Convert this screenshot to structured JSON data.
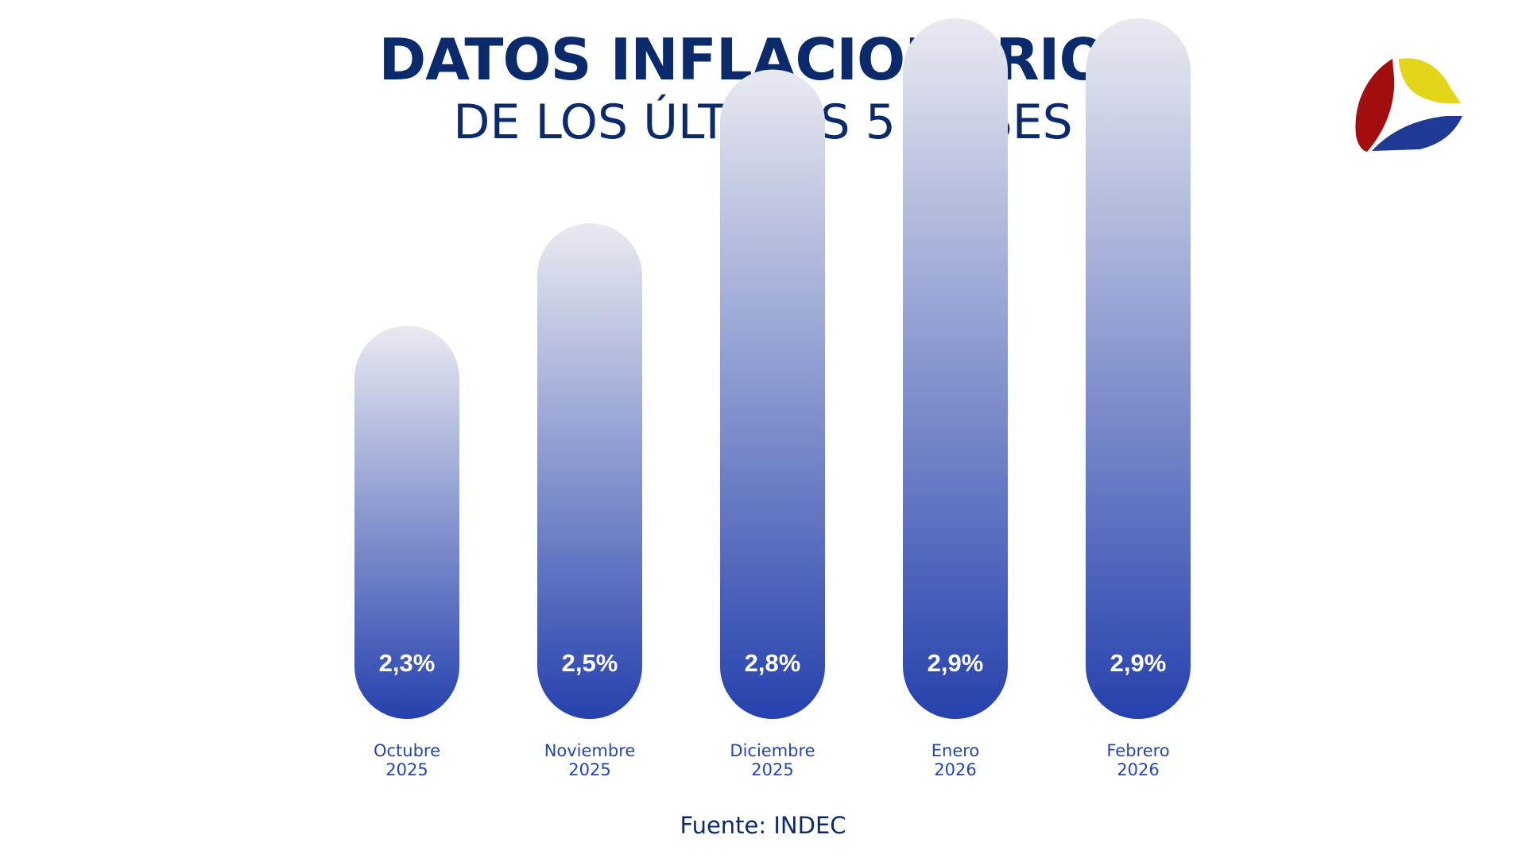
{
  "header": {
    "title": "DATOS INFLACIONARIOS",
    "subtitle": "DE LOS ÚLTIMOS 5 MESES"
  },
  "footer": {
    "source": "Fuente: INDEC"
  },
  "logo": {
    "icon": "tricolor-petal-logo-icon",
    "colors": [
      "#a30d0d",
      "#e3d61a",
      "#1f3a93"
    ]
  },
  "colors": {
    "title": "#0b2a6b",
    "bar_top": "#e9eaf0",
    "bar_bottom": "#2541ad",
    "value_text": "#ffffff",
    "category_text": "#2545b0"
  },
  "chart_data": {
    "type": "bar",
    "categories": [
      [
        "Octubre",
        "2025"
      ],
      [
        "Noviembre",
        "2025"
      ],
      [
        "Diciembre",
        "2025"
      ],
      [
        "Enero",
        "2026"
      ],
      [
        "Febrero",
        "2026"
      ]
    ],
    "values": [
      2.3,
      2.5,
      2.8,
      2.9,
      2.9
    ],
    "value_labels": [
      "2,3%",
      "2,5%",
      "2,8%",
      "2,9%",
      "2,9%"
    ],
    "unit": "%",
    "title": "DATOS INFLACIONARIOS",
    "subtitle": "DE LOS ÚLTIMOS 5 MESES",
    "grid": false,
    "legend": "none"
  }
}
